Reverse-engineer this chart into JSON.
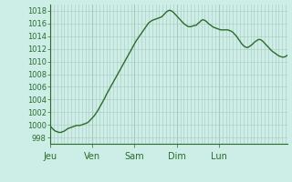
{
  "background_color": "#cceee6",
  "plot_bg_color": "#cceee6",
  "line_color": "#2d6b2d",
  "line_width": 1.0,
  "ylim": [
    997,
    1019
  ],
  "yticks": [
    998,
    1000,
    1002,
    1004,
    1006,
    1008,
    1010,
    1012,
    1014,
    1016,
    1018
  ],
  "day_labels": [
    "Jeu",
    "Ven",
    "Sam",
    "Dim",
    "Lun"
  ],
  "day_positions": [
    0,
    24,
    48,
    72,
    96
  ],
  "grid_color": "#aac8be",
  "tick_color": "#2d6b2d",
  "fine_grid_step": 2,
  "pressure_values": [
    999.8,
    999.5,
    999.2,
    999.0,
    998.9,
    998.8,
    998.8,
    998.9,
    999.0,
    999.2,
    999.4,
    999.5,
    999.6,
    999.7,
    999.8,
    999.9,
    999.9,
    999.9,
    1000.0,
    1000.1,
    1000.2,
    1000.3,
    1000.5,
    1000.8,
    1001.1,
    1001.4,
    1001.8,
    1002.2,
    1002.7,
    1003.2,
    1003.7,
    1004.2,
    1004.8,
    1005.3,
    1005.8,
    1006.3,
    1006.8,
    1007.3,
    1007.8,
    1008.3,
    1008.8,
    1009.3,
    1009.8,
    1010.3,
    1010.8,
    1011.3,
    1011.8,
    1012.3,
    1012.8,
    1013.3,
    1013.7,
    1014.1,
    1014.5,
    1014.9,
    1015.3,
    1015.7,
    1016.1,
    1016.3,
    1016.5,
    1016.6,
    1016.7,
    1016.8,
    1016.9,
    1017.0,
    1017.2,
    1017.5,
    1017.8,
    1018.0,
    1018.1,
    1018.0,
    1017.8,
    1017.5,
    1017.2,
    1016.9,
    1016.6,
    1016.3,
    1016.0,
    1015.8,
    1015.6,
    1015.5,
    1015.5,
    1015.6,
    1015.7,
    1015.7,
    1016.0,
    1016.2,
    1016.5,
    1016.6,
    1016.5,
    1016.3,
    1016.0,
    1015.8,
    1015.6,
    1015.4,
    1015.3,
    1015.2,
    1015.1,
    1015.0,
    1015.0,
    1015.0,
    1015.0,
    1015.0,
    1014.9,
    1014.8,
    1014.6,
    1014.3,
    1014.0,
    1013.6,
    1013.2,
    1012.8,
    1012.5,
    1012.3,
    1012.2,
    1012.3,
    1012.5,
    1012.7,
    1013.0,
    1013.2,
    1013.4,
    1013.5,
    1013.4,
    1013.2,
    1012.9,
    1012.6,
    1012.3,
    1012.0,
    1011.7,
    1011.5,
    1011.3,
    1011.1,
    1010.9,
    1010.8,
    1010.7,
    1010.7,
    1010.8,
    1011.0
  ]
}
